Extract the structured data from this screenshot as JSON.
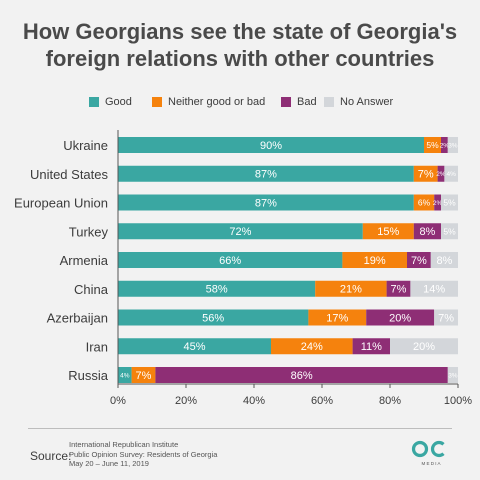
{
  "title_lines": [
    "How Georgians see the state of Georgia's",
    "foreign relations with other countries"
  ],
  "colors": {
    "good": "#3aa7a2",
    "neither": "#f5820d",
    "bad": "#8e2e75",
    "no_answer": "#d3d6da",
    "axis": "#555555",
    "title": "#4a4a4a"
  },
  "chart_data": {
    "type": "bar",
    "orientation": "horizontal",
    "stacked": true,
    "categories": [
      "Ukraine",
      "United States",
      "European Union",
      "Turkey",
      "Armenia",
      "China",
      "Azerbaijan",
      "Iran",
      "Russia"
    ],
    "series": [
      {
        "name": "Good",
        "color": "#3aa7a2",
        "values": [
          90,
          87,
          87,
          72,
          66,
          58,
          56,
          45,
          4
        ]
      },
      {
        "name": "Neither good or bad",
        "color": "#f5820d",
        "values": [
          5,
          7,
          6,
          15,
          19,
          21,
          17,
          24,
          7
        ]
      },
      {
        "name": "Bad",
        "color": "#8e2e75",
        "values": [
          2,
          2,
          2,
          8,
          7,
          7,
          20,
          11,
          86
        ]
      },
      {
        "name": "No Answer",
        "color": "#d3d6da",
        "values": [
          3,
          4,
          5,
          5,
          8,
          14,
          7,
          20,
          3
        ]
      }
    ],
    "xlim": [
      0,
      100
    ],
    "xticks": [
      "0%",
      "20%",
      "40%",
      "60%",
      "80%",
      "100%"
    ],
    "legend_position": "top",
    "grid": false
  },
  "footer": {
    "source_label": "Source:",
    "source_lines": [
      "International Republican Institute",
      "Public Opinion Survey: Residents of Georgia",
      "May 20 – June 11, 2019"
    ],
    "logo_text": "OC",
    "logo_subtext": "M E D I A"
  }
}
